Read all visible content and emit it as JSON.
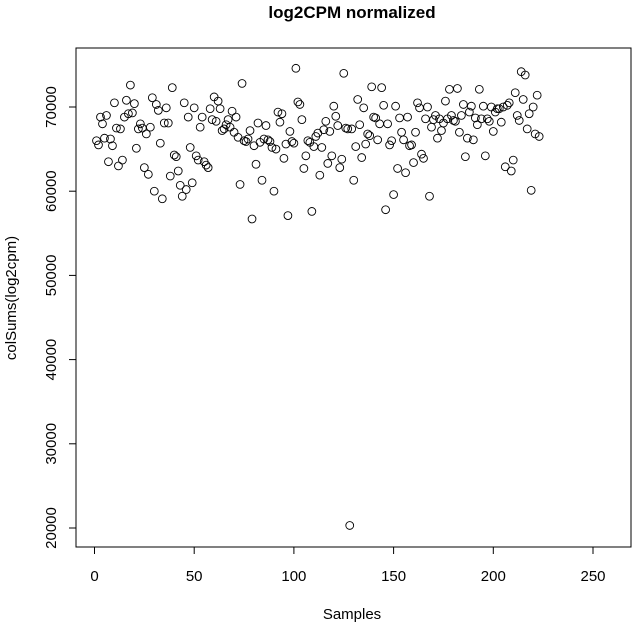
{
  "chart_data": {
    "type": "scatter",
    "title": "log2CPM normalized",
    "xlabel": "Samples",
    "ylabel": "colSums(log2cpm)",
    "xlim": [
      0,
      260
    ],
    "ylim": [
      20000,
      75000
    ],
    "xticks": [
      0,
      50,
      100,
      150,
      200,
      250
    ],
    "yticks": [
      20000,
      30000,
      40000,
      50000,
      60000,
      70000
    ],
    "marker": "open-circle",
    "grid": false,
    "series": [
      {
        "values": [
          66000,
          65500,
          68800,
          68000,
          66300,
          69000,
          63500,
          66200,
          65400,
          70500,
          67500,
          63000,
          67400,
          63700,
          68800,
          70800,
          69200,
          72600,
          69300,
          70400,
          65100,
          67400,
          68000,
          67500,
          62800,
          66800,
          62000,
          67600,
          71100,
          60000,
          70300,
          69600,
          65700,
          59100,
          68100,
          69900,
          68100,
          61800,
          72300,
          64300,
          64100,
          62400,
          60700,
          59400,
          70500,
          60200,
          68800,
          65200,
          61000,
          69900,
          64200,
          63700,
          67600,
          68800,
          63500,
          63100,
          62800,
          69800,
          68500,
          71200,
          68300,
          70700,
          69800,
          67200,
          67400,
          67900,
          68500,
          67600,
          69500,
          67000,
          68800,
          66400,
          60800,
          72800,
          66000,
          65900,
          66200,
          67200,
          56700,
          65400,
          63200,
          68100,
          65800,
          61300,
          66200,
          67800,
          66100,
          65900,
          65200,
          60000,
          65000,
          69400,
          68200,
          69200,
          63900,
          65600,
          57100,
          67100,
          65900,
          65700,
          74600,
          70600,
          70300,
          68500,
          62700,
          64200,
          66000,
          65800,
          57600,
          65300,
          66500,
          66900,
          61900,
          65200,
          67300,
          68300,
          63300,
          67100,
          64200,
          70100,
          68900,
          67800,
          62800,
          63800,
          74000,
          67500,
          67400,
          20300,
          67400,
          61300,
          65300,
          70900,
          67900,
          64000,
          69900,
          65600,
          66800,
          66600,
          72400,
          68800,
          68700,
          66100,
          68000,
          72300,
          70200,
          57800,
          68000,
          65500,
          66000,
          59600,
          70100,
          62700,
          68700,
          67000,
          66100,
          62200,
          68800,
          65400,
          65500,
          63400,
          67000,
          70500,
          69900,
          64400,
          63900,
          68600,
          70000,
          59400,
          67600,
          68500,
          69000,
          66300,
          68600,
          67200,
          68100,
          70700,
          68600,
          72100,
          69000,
          68400,
          68300,
          72200,
          67000,
          69000,
          70300,
          64100,
          66300,
          69400,
          70100,
          66100,
          68700,
          67900,
          72100,
          68600,
          70100,
          64200,
          68600,
          68300,
          70000,
          67100,
          69400,
          69800,
          69800,
          68200,
          70000,
          62900,
          70200,
          70500,
          62400,
          63700,
          71700,
          69000,
          68400,
          74200,
          70900,
          73800,
          67400,
          69200,
          60100,
          70000,
          66800,
          71400,
          66500
        ]
      }
    ]
  }
}
